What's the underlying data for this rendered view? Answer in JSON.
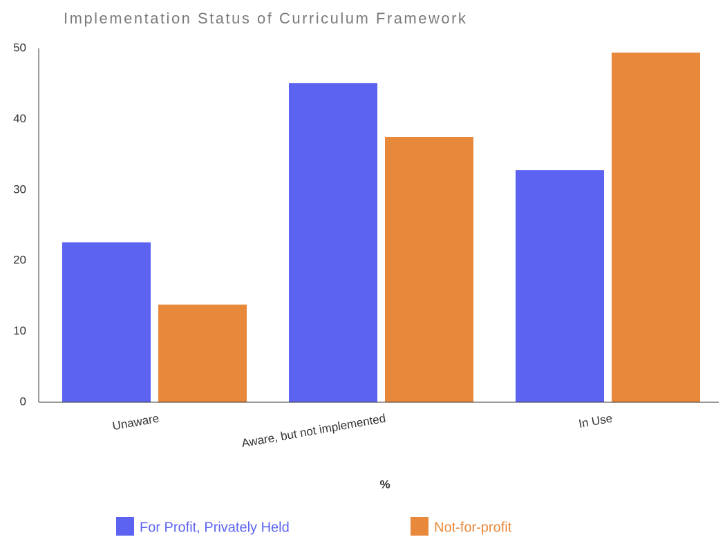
{
  "chart_data": {
    "type": "bar",
    "title": "Implementation Status of Curriculum Framework",
    "x_label": "%",
    "categories": [
      "Unaware",
      "Aware, but not implemented",
      "In Use"
    ],
    "series": [
      {
        "name": "For Profit, Privately Held",
        "color": "#5b63f0",
        "values": [
          22.6,
          45.1,
          32.8
        ]
      },
      {
        "name": "Not-for-profit",
        "color": "#e8883a",
        "values": [
          13.8,
          37.5,
          49.4
        ]
      }
    ],
    "ylim": [
      0,
      50
    ],
    "yticks": [
      0,
      10,
      20,
      30,
      40,
      50
    ],
    "grid": false,
    "legend": "bottom"
  }
}
